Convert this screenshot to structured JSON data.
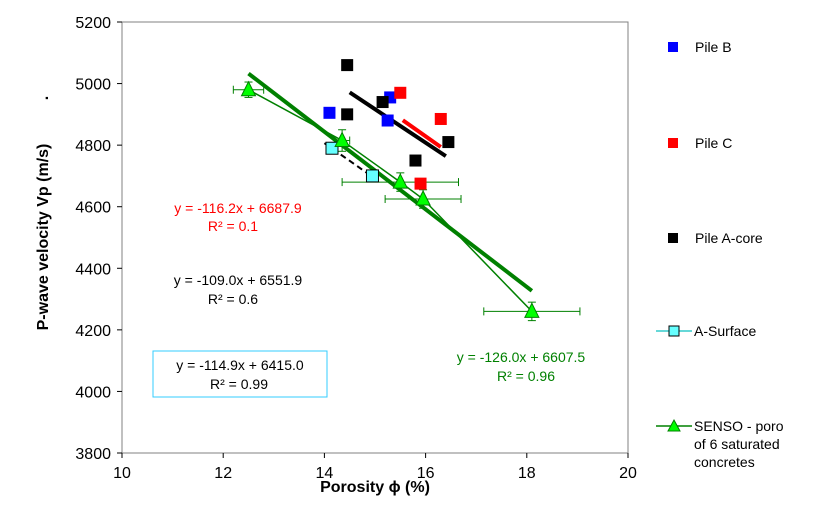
{
  "chart_data": {
    "type": "scatter",
    "xlabel": "Porosity ϕ (%)",
    "ylabel": "P-wave velocity Vp (m/s)",
    "ylabel_suffix": ".",
    "xlim": [
      10,
      20
    ],
    "ylim": [
      3800,
      5200
    ],
    "x_ticks": [
      10,
      12,
      14,
      16,
      18,
      20
    ],
    "y_ticks": [
      3800,
      4000,
      4200,
      4400,
      4600,
      4800,
      5000,
      5200
    ],
    "x_tick_labels": [
      "10",
      "12",
      "14",
      "16",
      "18",
      "20"
    ],
    "y_tick_labels": [
      "3800",
      "4000",
      "4200",
      "4400",
      "4600",
      "4800",
      "5000",
      "5200"
    ],
    "grid": false,
    "legend_position": "right",
    "series": [
      {
        "name": "Pile B",
        "marker": "square",
        "color": "#0000ff",
        "points": [
          {
            "x": 14.1,
            "y": 4905
          },
          {
            "x": 15.3,
            "y": 4955
          },
          {
            "x": 15.25,
            "y": 4880
          }
        ],
        "fit": null
      },
      {
        "name": "Pile C",
        "marker": "square",
        "color": "#ff0000",
        "points": [
          {
            "x": 15.5,
            "y": 4970
          },
          {
            "x": 16.3,
            "y": 4885
          },
          {
            "x": 15.9,
            "y": 4675
          }
        ],
        "fit": {
          "x": [
            15.55,
            16.3
          ],
          "slope": -116.2,
          "intercept": 6687.9,
          "color": "#ff0000",
          "width": 4,
          "dash": false
        }
      },
      {
        "name": "Pile A-core",
        "marker": "square",
        "color": "#000000",
        "points": [
          {
            "x": 14.45,
            "y": 5060
          },
          {
            "x": 14.45,
            "y": 4900
          },
          {
            "x": 15.15,
            "y": 4940
          },
          {
            "x": 15.8,
            "y": 4750
          },
          {
            "x": 16.45,
            "y": 4810
          }
        ],
        "fit": {
          "x": [
            14.5,
            16.4
          ],
          "slope": -109.0,
          "intercept": 6551.9,
          "color": "#000000",
          "width": 4,
          "dash": false
        }
      },
      {
        "name": "A-Surface",
        "marker": "square-open",
        "color": "#33cccc",
        "fill": "#66ffff",
        "points": [
          {
            "x": 14.15,
            "y": 4790
          },
          {
            "x": 14.95,
            "y": 4700
          }
        ],
        "fit": {
          "x": [
            14.0,
            14.95
          ],
          "slope": -114.9,
          "intercept": 6415.0,
          "color": "#000000",
          "width": 2,
          "dash": true
        }
      },
      {
        "name": "SENSO - poro of 6 saturated concretes",
        "marker": "triangle",
        "color": "#008000",
        "fill": "#00ff00",
        "points": [
          {
            "x": 12.5,
            "y": 4980,
            "xerr": 0.3,
            "yerr": 25
          },
          {
            "x": 14.35,
            "y": 4815,
            "xerr": 0.15,
            "yerr": 35
          },
          {
            "x": 15.5,
            "y": 4680,
            "xerr": 1.15,
            "yerr": 30
          },
          {
            "x": 15.95,
            "y": 4625,
            "xerr": 0.75,
            "yerr": 30
          },
          {
            "x": 18.1,
            "y": 4260,
            "xerr": 0.95,
            "yerr": 30
          }
        ],
        "connect": true,
        "fit": {
          "x": [
            12.5,
            18.1
          ],
          "slope": -126.0,
          "intercept": 6607.5,
          "color": "#008000",
          "width": 4,
          "dash": false
        }
      }
    ],
    "annotations": [
      {
        "id": "pile-c-eq",
        "line1": "y = -116.2x + 6687.9",
        "line2": "R² = 0.1",
        "color": "#ff0000",
        "boxed": false
      },
      {
        "id": "a-core-eq",
        "line1": "y = -109.0x + 6551.9",
        "line2": "R² = 0.6",
        "color": "#000000",
        "boxed": false
      },
      {
        "id": "a-surface-eq",
        "line1": "y = -114.9x + 6415.0",
        "line2": "R² = 0.99",
        "color": "#000000",
        "boxed": true,
        "box_color": "#33ccff"
      },
      {
        "id": "senso-eq",
        "line1": "y = -126.0x + 6607.5",
        "line2": "R² = 0.96",
        "color": "#008000",
        "boxed": false
      }
    ]
  }
}
